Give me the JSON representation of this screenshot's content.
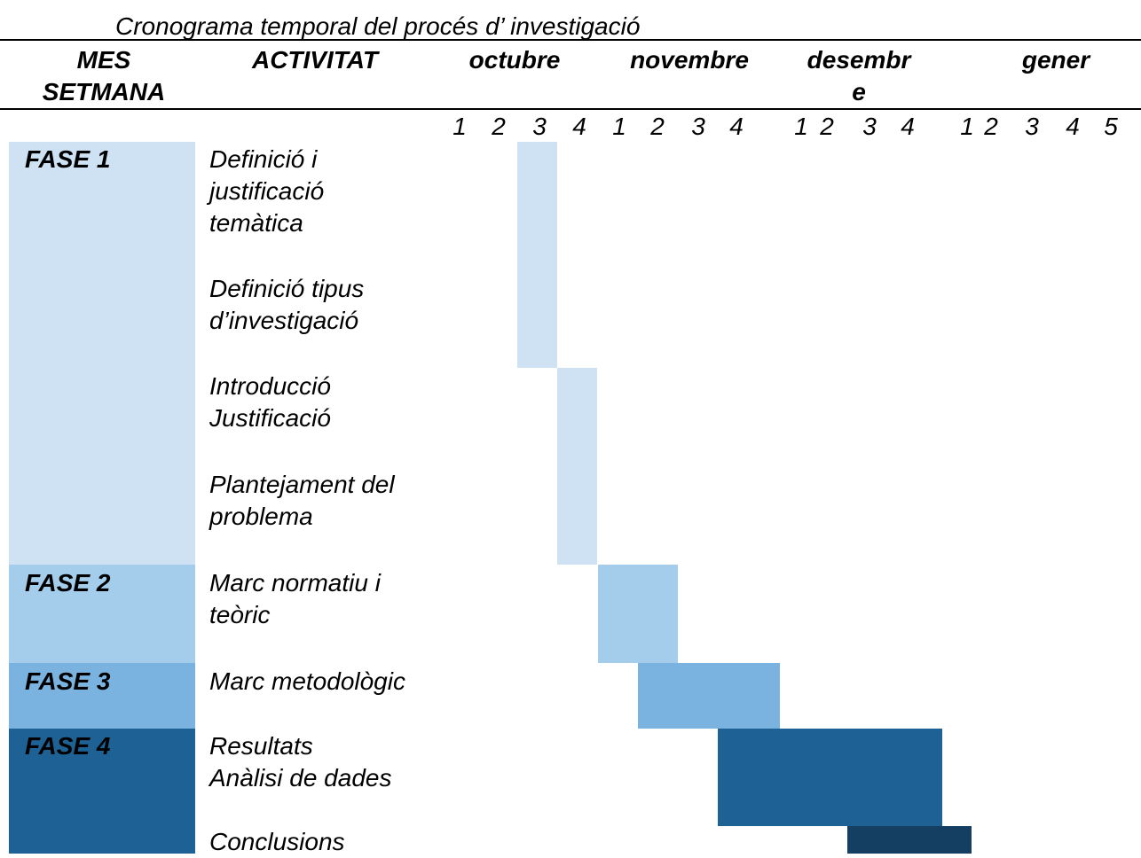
{
  "title": "Cronograma temporal del procés d’ investigació",
  "header": {
    "mes": "MES",
    "setmana": "SETMANA",
    "activitat": "ACTIVITAT",
    "months": [
      [
        "octubre"
      ],
      [
        "novembre"
      ],
      [
        "desembr",
        "e"
      ],
      [
        "gener"
      ]
    ],
    "weeks": [
      1,
      2,
      3,
      4,
      1,
      2,
      3,
      4,
      1,
      2,
      3,
      4,
      1,
      2,
      3,
      4,
      5
    ]
  },
  "phases": [
    {
      "label": "FASE 1",
      "activities": [
        [
          "Definició i",
          "justificació",
          "temàtica"
        ],
        [
          "Definició tipus",
          "d’investigació"
        ],
        [
          "Introducció",
          "Justificació"
        ],
        [
          "Plantejament del",
          "problema"
        ]
      ]
    },
    {
      "label": "FASE 2",
      "activities": [
        [
          "Marc normatiu i",
          "teòric"
        ]
      ]
    },
    {
      "label": "FASE 3",
      "activities": [
        [
          "Marc metodològic"
        ]
      ]
    },
    {
      "label": "FASE 4",
      "activities": [
        [
          "Resultats",
          "Anàlisi de dades"
        ],
        [
          "Conclusions"
        ]
      ]
    }
  ]
}
